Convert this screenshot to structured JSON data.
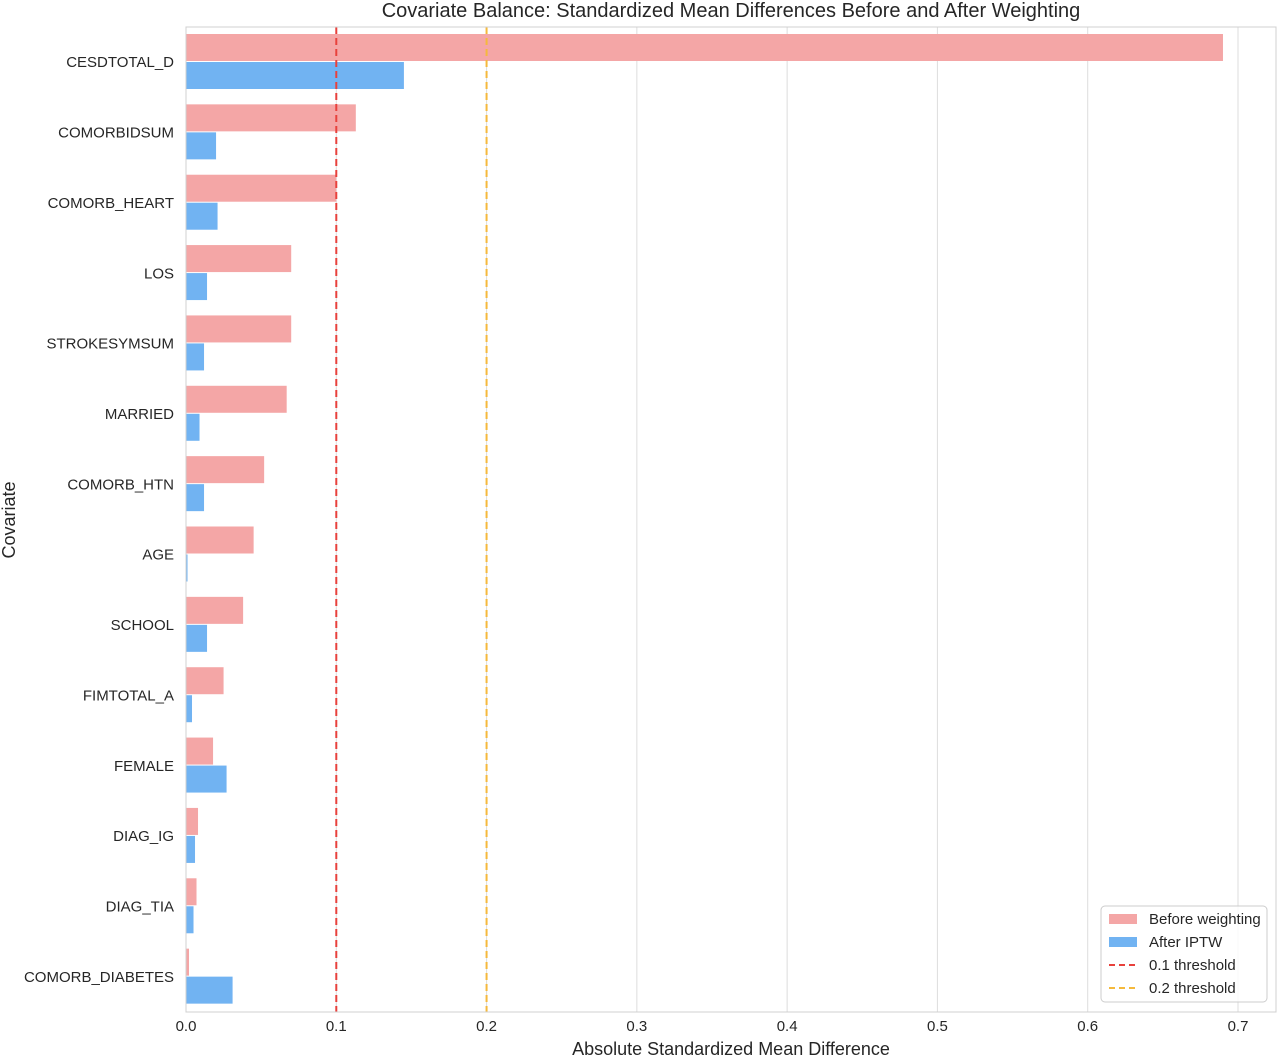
{
  "chart_data": {
    "type": "bar",
    "orientation": "horizontal",
    "title": "Covariate Balance: Standardized Mean Differences Before and After Weighting",
    "xlabel": "Absolute Standardized Mean Difference",
    "ylabel": "Covariate",
    "xlim": [
      0,
      0.7
    ],
    "xticks": [
      "0.0",
      "0.1",
      "0.2",
      "0.3",
      "0.4",
      "0.5",
      "0.6",
      "0.7"
    ],
    "categories": [
      "CESDTOTAL_D",
      "COMORBIDSUM",
      "COMORB_HEART",
      "LOS",
      "STROKESYMSUM",
      "MARRIED",
      "COMORB_HTN",
      "AGE",
      "SCHOOL",
      "FIMTOTAL_A",
      "FEMALE",
      "DIAG_IG",
      "DIAG_TIA",
      "COMORB_DIABETES"
    ],
    "series": [
      {
        "name": "Before weighting",
        "color": "#f4a6a6",
        "values": [
          0.69,
          0.113,
          0.1,
          0.07,
          0.07,
          0.067,
          0.052,
          0.045,
          0.038,
          0.025,
          0.018,
          0.008,
          0.007,
          0.002
        ]
      },
      {
        "name": "After IPTW",
        "color": "#71b3f2",
        "values": [
          0.145,
          0.02,
          0.021,
          0.014,
          0.012,
          0.009,
          0.012,
          0.001,
          0.014,
          0.004,
          0.027,
          0.006,
          0.005,
          0.031
        ]
      }
    ],
    "thresholds": [
      {
        "name": "0.1 threshold",
        "value": 0.1,
        "color": "#e8413c"
      },
      {
        "name": "0.2 threshold",
        "value": 0.2,
        "color": "#f5b93c"
      }
    ],
    "grid": "vertical",
    "legend_position": "bottom-right"
  }
}
